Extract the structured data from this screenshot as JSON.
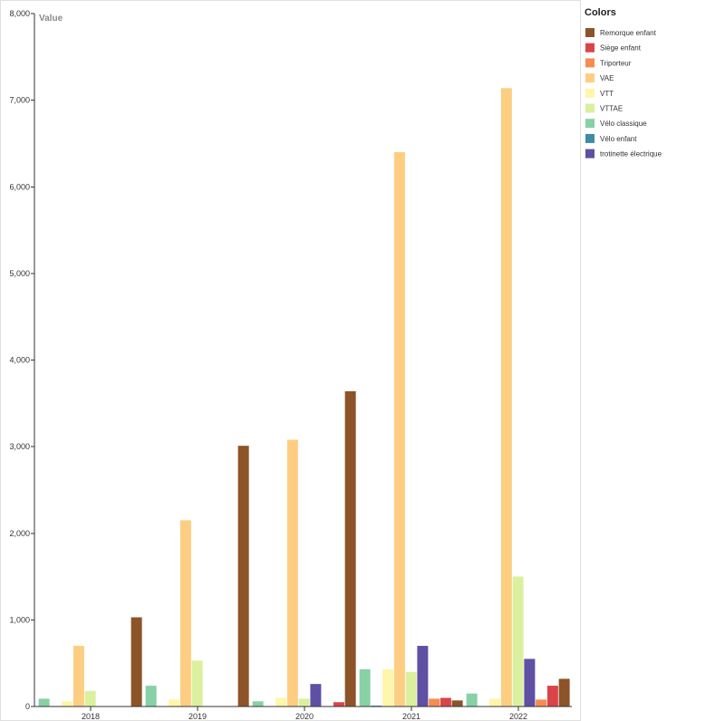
{
  "chart_data": {
    "type": "bar",
    "ylabel": "Value",
    "legend_title": "Colors",
    "legend_position": "right",
    "grid": false,
    "categories": [
      "2018",
      "2019",
      "2020",
      "2021",
      "2022"
    ],
    "ylim": [
      0,
      8000
    ],
    "y_ticks": [
      "0",
      "1,000",
      "2,000",
      "3,000",
      "4,000",
      "5,000",
      "6,000",
      "7,000",
      "8,000"
    ],
    "series": [
      {
        "name": "Remorque enfant",
        "color": "#8c5428",
        "values": [
          1030,
          3010,
          3640,
          70,
          320
        ]
      },
      {
        "name": "Siège enfant",
        "color": "#da4448",
        "values": [
          0,
          0,
          50,
          100,
          240
        ]
      },
      {
        "name": "Triporteur",
        "color": "#f58c50",
        "values": [
          0,
          0,
          0,
          90,
          80
        ]
      },
      {
        "name": "VAE",
        "color": "#fdce82",
        "values": [
          700,
          2150,
          3080,
          6400,
          7140
        ]
      },
      {
        "name": "VTT",
        "color": "#fef6a9",
        "values": [
          60,
          80,
          100,
          430,
          90
        ]
      },
      {
        "name": "VTTAE",
        "color": "#daf09e",
        "values": [
          180,
          530,
          90,
          400,
          1500
        ]
      },
      {
        "name": "Vélo classique",
        "color": "#88d0a5",
        "values": [
          90,
          240,
          60,
          430,
          150
        ]
      },
      {
        "name": "Vélo enfant",
        "color": "#3e8aa8",
        "values": [
          0,
          0,
          0,
          10,
          0
        ]
      },
      {
        "name": "trotinette électrique",
        "color": "#6050a3",
        "values": [
          0,
          0,
          260,
          700,
          550
        ]
      }
    ]
  }
}
